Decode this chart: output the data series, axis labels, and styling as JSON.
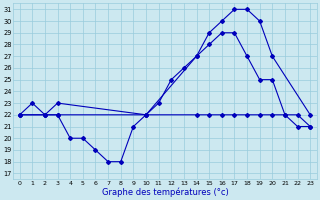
{
  "xlabel": "Graphe des températures (°c)",
  "xlim": [
    -0.5,
    23.5
  ],
  "ylim": [
    16.5,
    31.5
  ],
  "yticks": [
    17,
    18,
    19,
    20,
    21,
    22,
    23,
    24,
    25,
    26,
    27,
    28,
    29,
    30,
    31
  ],
  "xticks": [
    0,
    1,
    2,
    3,
    4,
    5,
    6,
    7,
    8,
    9,
    10,
    11,
    12,
    13,
    14,
    15,
    16,
    17,
    18,
    19,
    20,
    21,
    22,
    23
  ],
  "bg_color": "#cce8f0",
  "line_color": "#0000bb",
  "grid_color": "#99ccdd",
  "series": [
    {
      "x": [
        0,
        1,
        2,
        3,
        4,
        5,
        6,
        7,
        8,
        9,
        10,
        11,
        12,
        13,
        14,
        15,
        16,
        17,
        18,
        19,
        20,
        21,
        22,
        23
      ],
      "y": [
        22,
        23,
        22,
        22,
        20,
        20,
        19,
        18,
        18,
        21,
        22,
        23,
        25,
        26,
        27,
        28,
        29,
        29,
        27,
        25,
        25,
        22,
        21,
        21
      ]
    },
    {
      "x": [
        0,
        2,
        3,
        10,
        14,
        15,
        16,
        17,
        18,
        19,
        20,
        23
      ],
      "y": [
        22,
        22,
        23,
        22,
        27,
        29,
        30,
        31,
        31,
        30,
        27,
        22
      ]
    },
    {
      "x": [
        0,
        2,
        3,
        10,
        14,
        15,
        16,
        17,
        18,
        19,
        20,
        21,
        22,
        23
      ],
      "y": [
        22,
        22,
        22,
        22,
        22,
        22,
        22,
        22,
        22,
        22,
        22,
        22,
        22,
        21
      ]
    }
  ]
}
